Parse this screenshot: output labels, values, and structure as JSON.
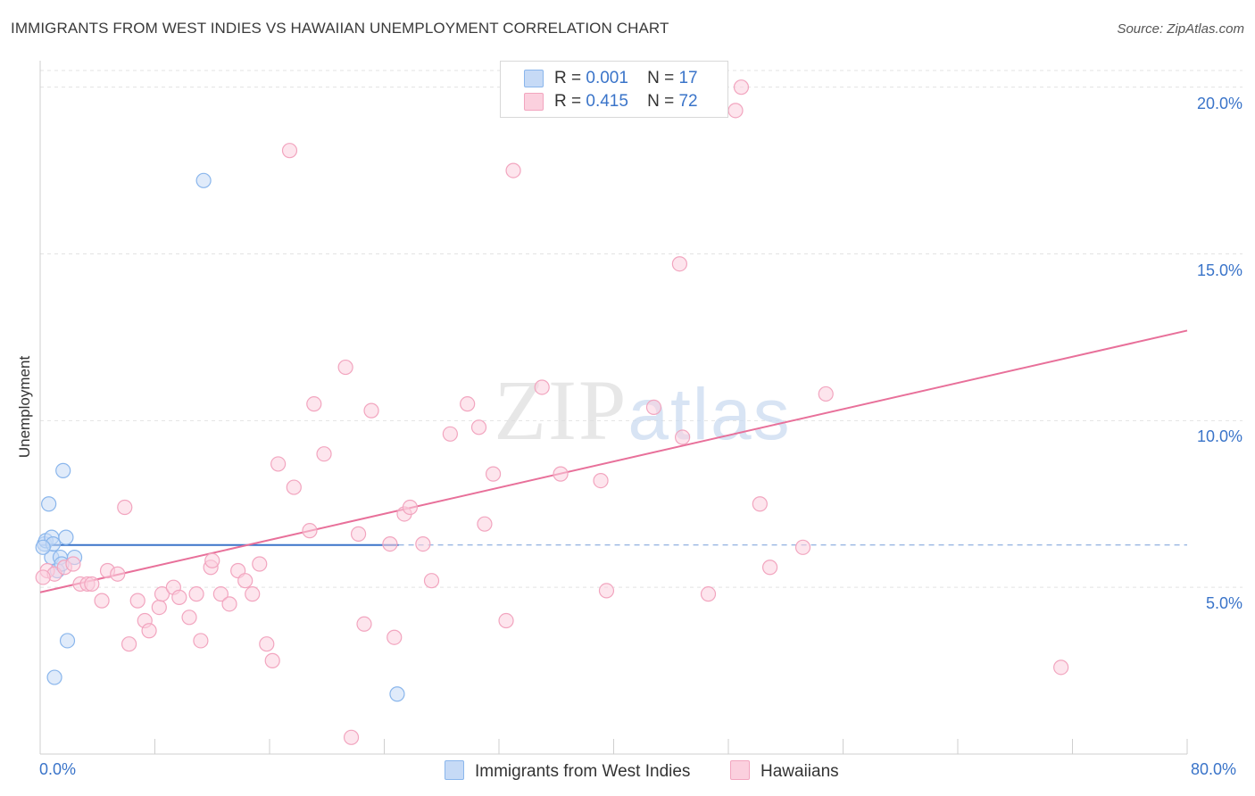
{
  "title": "IMMIGRANTS FROM WEST INDIES VS HAWAIIAN UNEMPLOYMENT CORRELATION CHART",
  "source": "Source: ZipAtlas.com",
  "colors": {
    "blue": "#8ab6ec",
    "blue_line": "#3a74c9",
    "pink": "#f2a5bf",
    "pink_line": "#e8709a",
    "label_blue": "#3a74c9"
  },
  "legend": {
    "blue": {
      "r_label": "R =",
      "r_value": "0.001",
      "n_label": "N =",
      "n_value": "17"
    },
    "pink": {
      "r_label": "R =",
      "r_value": "0.415",
      "n_label": "N =",
      "n_value": "72"
    }
  },
  "chart_data": {
    "type": "scatter",
    "title": "IMMIGRANTS FROM WEST INDIES VS HAWAIIAN UNEMPLOYMENT CORRELATION CHART",
    "xlabel": "",
    "ylabel": "Unemployment",
    "xlim": [
      0,
      80
    ],
    "ylim": [
      0,
      20.5
    ],
    "x_tick_labels": [
      "0.0%",
      "80.0%"
    ],
    "y_ticks": [
      5,
      10,
      15,
      20
    ],
    "y_tick_labels": [
      "5.0%",
      "10.0%",
      "15.0%",
      "20.0%"
    ],
    "series": [
      {
        "name": "Immigrants from West Indies",
        "color": "blue",
        "r": 0.001,
        "n": 17,
        "points": [
          [
            0.3,
            6.3
          ],
          [
            0.4,
            6.4
          ],
          [
            0.6,
            7.5
          ],
          [
            0.8,
            6.5
          ],
          [
            0.8,
            5.9
          ],
          [
            0.9,
            6.3
          ],
          [
            1.0,
            2.3
          ],
          [
            1.2,
            5.5
          ],
          [
            1.4,
            5.9
          ],
          [
            1.5,
            5.7
          ],
          [
            1.6,
            8.5
          ],
          [
            1.8,
            6.5
          ],
          [
            1.9,
            3.4
          ],
          [
            2.4,
            5.9
          ],
          [
            11.4,
            17.2
          ],
          [
            24.9,
            1.8
          ],
          [
            0.2,
            6.2
          ]
        ],
        "trend": {
          "x": [
            0,
            25
          ],
          "y": [
            6.27,
            6.27
          ],
          "dashed_extension_to": 80
        }
      },
      {
        "name": "Hawaiians",
        "color": "pink",
        "r": 0.415,
        "n": 72,
        "points": [
          [
            0.5,
            5.5
          ],
          [
            1.0,
            5.4
          ],
          [
            1.7,
            5.6
          ],
          [
            2.3,
            5.7
          ],
          [
            2.8,
            5.1
          ],
          [
            3.3,
            5.1
          ],
          [
            3.6,
            5.1
          ],
          [
            4.3,
            4.6
          ],
          [
            4.7,
            5.5
          ],
          [
            5.4,
            5.4
          ],
          [
            5.9,
            7.4
          ],
          [
            6.2,
            3.3
          ],
          [
            6.8,
            4.6
          ],
          [
            7.3,
            4.0
          ],
          [
            7.6,
            3.7
          ],
          [
            8.3,
            4.4
          ],
          [
            8.5,
            4.8
          ],
          [
            9.3,
            5.0
          ],
          [
            9.7,
            4.7
          ],
          [
            10.4,
            4.1
          ],
          [
            10.9,
            4.8
          ],
          [
            11.2,
            3.4
          ],
          [
            11.9,
            5.6
          ],
          [
            12.0,
            5.8
          ],
          [
            12.6,
            4.8
          ],
          [
            13.2,
            4.5
          ],
          [
            13.8,
            5.5
          ],
          [
            14.3,
            5.2
          ],
          [
            14.8,
            4.8
          ],
          [
            15.3,
            5.7
          ],
          [
            15.8,
            3.3
          ],
          [
            16.2,
            2.8
          ],
          [
            16.6,
            8.7
          ],
          [
            17.4,
            18.1
          ],
          [
            17.7,
            8.0
          ],
          [
            18.8,
            6.7
          ],
          [
            19.1,
            10.5
          ],
          [
            19.8,
            9.0
          ],
          [
            21.3,
            11.6
          ],
          [
            21.7,
            0.5
          ],
          [
            22.2,
            6.6
          ],
          [
            22.6,
            3.9
          ],
          [
            23.1,
            10.3
          ],
          [
            24.4,
            6.3
          ],
          [
            24.7,
            3.5
          ],
          [
            25.4,
            7.2
          ],
          [
            25.8,
            7.4
          ],
          [
            26.7,
            6.3
          ],
          [
            27.3,
            5.2
          ],
          [
            28.6,
            9.6
          ],
          [
            29.8,
            10.5
          ],
          [
            30.6,
            9.8
          ],
          [
            31.0,
            6.9
          ],
          [
            31.6,
            8.4
          ],
          [
            32.5,
            4.0
          ],
          [
            33.0,
            17.5
          ],
          [
            35.0,
            11.0
          ],
          [
            36.3,
            8.4
          ],
          [
            39.1,
            8.2
          ],
          [
            39.5,
            4.9
          ],
          [
            42.8,
            10.4
          ],
          [
            44.6,
            14.7
          ],
          [
            44.8,
            9.5
          ],
          [
            46.6,
            4.8
          ],
          [
            48.5,
            19.3
          ],
          [
            48.9,
            20.0
          ],
          [
            50.2,
            7.5
          ],
          [
            50.9,
            5.6
          ],
          [
            53.2,
            6.2
          ],
          [
            54.8,
            10.8
          ],
          [
            71.2,
            2.6
          ],
          [
            0.2,
            5.3
          ]
        ],
        "trend": {
          "x": [
            0,
            80
          ],
          "y": [
            4.85,
            12.7
          ]
        }
      }
    ],
    "watermark": "ZIPatlas"
  },
  "bottom_legend": [
    "Immigrants from West Indies",
    "Hawaiians"
  ]
}
